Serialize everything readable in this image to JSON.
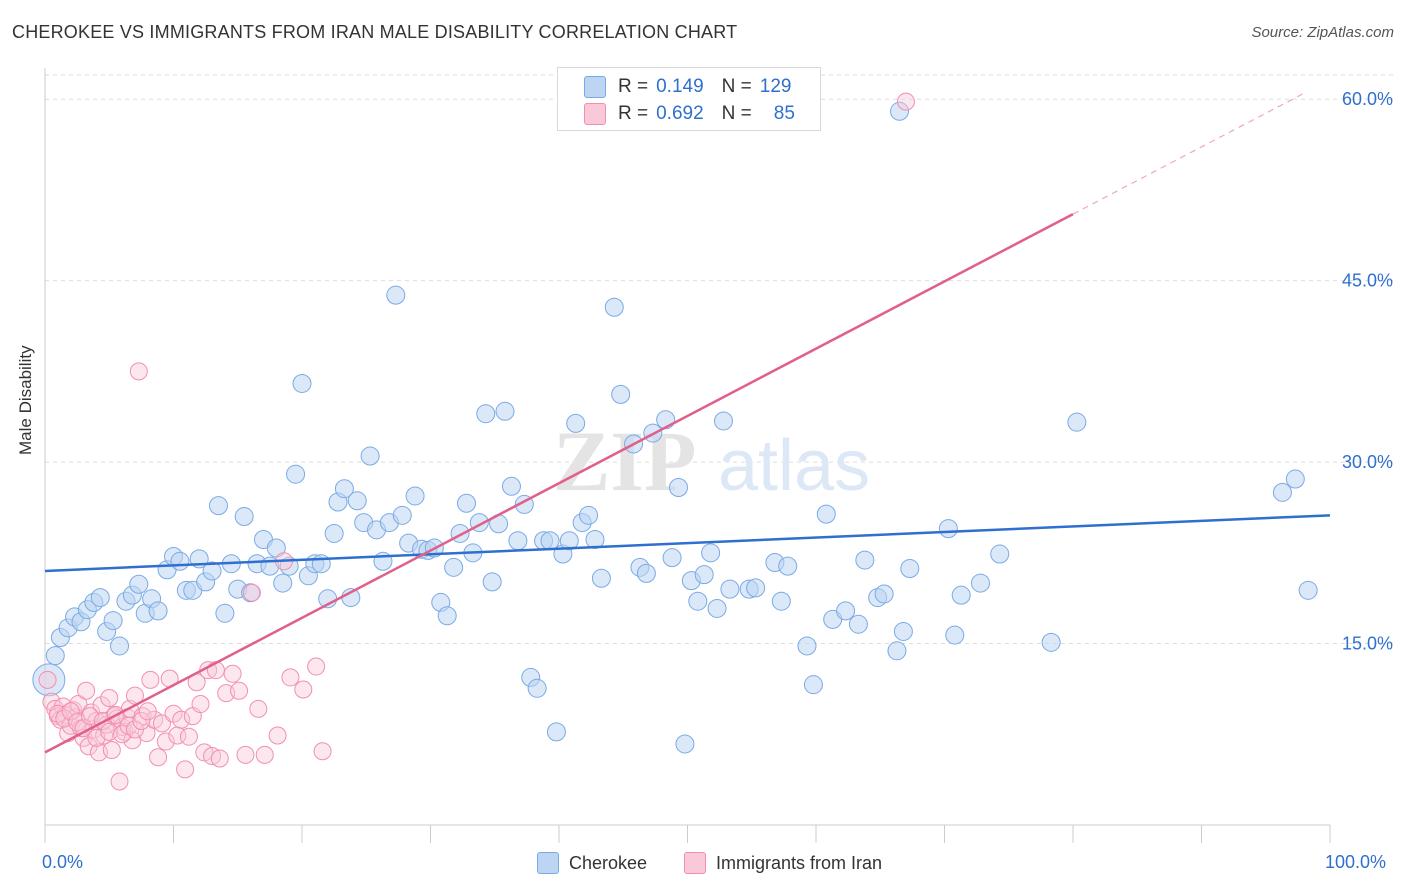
{
  "title": "CHEROKEE VS IMMIGRANTS FROM IRAN MALE DISABILITY CORRELATION CHART",
  "source": "Source: ZipAtlas.com",
  "watermark": {
    "zip": "ZIP",
    "atlas": "atlas"
  },
  "legend": {
    "rows": [
      {
        "r_label": "R =",
        "r_value": "0.149",
        "n_label": "N =",
        "n_value": "129",
        "color": "#a8c8f0"
      },
      {
        "r_label": "R =",
        "r_value": "0.692",
        "n_label": "N =",
        "n_value": "85",
        "color": "#f6b6cc"
      }
    ]
  },
  "bottom_legend": {
    "series1": "Cherokee",
    "series2": "Immigrants from Iran"
  },
  "colors": {
    "blue": "#7aaae6",
    "blue_line": "#2f6fcf",
    "pink": "#f28fb0",
    "pink_line": "#e0608a",
    "grid": "#dddddd",
    "tick_text": "#2f6fcf"
  },
  "chart_data": {
    "type": "scatter",
    "title": "CHEROKEE VS IMMIGRANTS FROM IRAN MALE DISABILITY CORRELATION CHART",
    "xlabel": "",
    "ylabel": "Male Disability",
    "xlim": [
      0,
      100
    ],
    "ylim": [
      0,
      62
    ],
    "x_tick_labels": [
      "0.0%",
      "100.0%"
    ],
    "y_ticks": [
      15,
      30,
      45,
      60
    ],
    "y_tick_labels": [
      "15.0%",
      "30.0%",
      "45.0%",
      "60.0%"
    ],
    "grid": "horizontal dashed",
    "legend_position": "top-center",
    "series": [
      {
        "name": "Cherokee",
        "color": "#7aaae6",
        "trend": {
          "x": [
            0,
            100
          ],
          "y": [
            21.0,
            25.6
          ]
        },
        "points": [
          [
            0.3,
            12.0
          ],
          [
            0.8,
            14.0
          ],
          [
            1.2,
            15.5
          ],
          [
            1.8,
            16.3
          ],
          [
            2.3,
            17.2
          ],
          [
            2.8,
            16.8
          ],
          [
            3.3,
            17.8
          ],
          [
            3.8,
            18.4
          ],
          [
            4.3,
            18.8
          ],
          [
            4.8,
            16.0
          ],
          [
            5.3,
            16.9
          ],
          [
            5.8,
            14.8
          ],
          [
            6.3,
            18.5
          ],
          [
            6.8,
            19.0
          ],
          [
            7.3,
            19.9
          ],
          [
            7.8,
            17.5
          ],
          [
            8.3,
            18.7
          ],
          [
            8.8,
            17.7
          ],
          [
            9.5,
            21.1
          ],
          [
            10.0,
            22.2
          ],
          [
            10.5,
            21.8
          ],
          [
            11.0,
            19.4
          ],
          [
            11.5,
            19.4
          ],
          [
            12.0,
            22.0
          ],
          [
            12.5,
            20.1
          ],
          [
            13.0,
            21.0
          ],
          [
            13.5,
            26.4
          ],
          [
            14.0,
            17.5
          ],
          [
            14.5,
            21.6
          ],
          [
            15.0,
            19.5
          ],
          [
            15.5,
            25.5
          ],
          [
            16.0,
            19.2
          ],
          [
            16.5,
            21.6
          ],
          [
            17.0,
            23.6
          ],
          [
            17.5,
            21.4
          ],
          [
            18.0,
            22.9
          ],
          [
            18.5,
            20.0
          ],
          [
            19.0,
            21.4
          ],
          [
            19.5,
            29.0
          ],
          [
            20.0,
            36.5
          ],
          [
            20.5,
            20.6
          ],
          [
            21.0,
            21.6
          ],
          [
            21.5,
            21.6
          ],
          [
            22.0,
            18.7
          ],
          [
            22.5,
            24.1
          ],
          [
            22.8,
            26.7
          ],
          [
            23.3,
            27.8
          ],
          [
            23.8,
            18.8
          ],
          [
            24.3,
            26.8
          ],
          [
            24.8,
            25.0
          ],
          [
            25.3,
            30.5
          ],
          [
            25.8,
            24.4
          ],
          [
            26.3,
            21.8
          ],
          [
            26.8,
            25.0
          ],
          [
            27.3,
            43.8
          ],
          [
            27.8,
            25.6
          ],
          [
            28.3,
            23.3
          ],
          [
            28.8,
            27.2
          ],
          [
            29.3,
            22.8
          ],
          [
            29.8,
            22.7
          ],
          [
            30.3,
            22.9
          ],
          [
            30.8,
            18.4
          ],
          [
            31.3,
            17.3
          ],
          [
            31.8,
            21.3
          ],
          [
            32.3,
            24.1
          ],
          [
            32.8,
            26.6
          ],
          [
            33.3,
            22.5
          ],
          [
            33.8,
            25.0
          ],
          [
            34.3,
            34.0
          ],
          [
            34.8,
            20.1
          ],
          [
            35.3,
            24.9
          ],
          [
            35.8,
            34.2
          ],
          [
            36.3,
            28.0
          ],
          [
            36.8,
            23.5
          ],
          [
            37.3,
            26.5
          ],
          [
            37.8,
            12.2
          ],
          [
            38.3,
            11.3
          ],
          [
            38.8,
            23.5
          ],
          [
            39.3,
            23.5
          ],
          [
            39.8,
            7.7
          ],
          [
            40.3,
            22.4
          ],
          [
            40.8,
            23.5
          ],
          [
            41.3,
            33.2
          ],
          [
            41.8,
            25.0
          ],
          [
            42.3,
            25.6
          ],
          [
            42.8,
            23.6
          ],
          [
            43.3,
            20.4
          ],
          [
            44.3,
            42.8
          ],
          [
            44.8,
            35.6
          ],
          [
            45.8,
            31.5
          ],
          [
            46.3,
            21.3
          ],
          [
            46.8,
            20.8
          ],
          [
            47.3,
            32.4
          ],
          [
            48.3,
            33.5
          ],
          [
            48.8,
            22.1
          ],
          [
            49.3,
            27.9
          ],
          [
            49.8,
            6.7
          ],
          [
            50.3,
            20.2
          ],
          [
            50.8,
            18.5
          ],
          [
            51.3,
            20.7
          ],
          [
            51.8,
            22.5
          ],
          [
            52.3,
            17.9
          ],
          [
            52.8,
            33.4
          ],
          [
            53.3,
            19.5
          ],
          [
            54.8,
            19.5
          ],
          [
            55.3,
            19.6
          ],
          [
            56.8,
            21.7
          ],
          [
            57.3,
            18.5
          ],
          [
            57.8,
            21.4
          ],
          [
            59.3,
            14.8
          ],
          [
            59.8,
            11.6
          ],
          [
            60.8,
            25.7
          ],
          [
            61.3,
            17.0
          ],
          [
            62.3,
            17.7
          ],
          [
            63.3,
            16.6
          ],
          [
            63.8,
            21.9
          ],
          [
            64.8,
            18.8
          ],
          [
            65.3,
            19.1
          ],
          [
            66.3,
            14.4
          ],
          [
            66.8,
            16.0
          ],
          [
            67.3,
            21.2
          ],
          [
            70.3,
            24.5
          ],
          [
            70.8,
            15.7
          ],
          [
            71.3,
            19.0
          ],
          [
            72.8,
            20.0
          ],
          [
            74.3,
            22.4
          ],
          [
            78.3,
            15.1
          ],
          [
            80.3,
            33.3
          ],
          [
            96.3,
            27.5
          ],
          [
            97.3,
            28.6
          ],
          [
            98.3,
            19.4
          ],
          [
            66.5,
            59.0
          ]
        ]
      },
      {
        "name": "Immigrants from Iran",
        "color": "#f28fb0",
        "trend": {
          "x": [
            0,
            80
          ],
          "y": [
            6.0,
            50.5
          ]
        },
        "trend_dashed": {
          "x": [
            80,
            98
          ],
          "y": [
            50.5,
            60.5
          ]
        },
        "points": [
          [
            0.2,
            12.0
          ],
          [
            0.5,
            10.2
          ],
          [
            0.8,
            9.6
          ],
          [
            1.0,
            9.0
          ],
          [
            1.2,
            8.7
          ],
          [
            1.4,
            9.8
          ],
          [
            1.6,
            9.1
          ],
          [
            1.8,
            7.6
          ],
          [
            2.0,
            8.2
          ],
          [
            2.2,
            9.5
          ],
          [
            2.4,
            8.9
          ],
          [
            2.6,
            10.0
          ],
          [
            2.8,
            8.0
          ],
          [
            3.0,
            7.2
          ],
          [
            3.2,
            11.1
          ],
          [
            3.4,
            6.5
          ],
          [
            3.6,
            9.3
          ],
          [
            3.8,
            7.9
          ],
          [
            4.0,
            8.6
          ],
          [
            4.2,
            6.0
          ],
          [
            4.4,
            9.9
          ],
          [
            4.6,
            7.4
          ],
          [
            4.8,
            8.3
          ],
          [
            5.0,
            10.5
          ],
          [
            5.2,
            6.2
          ],
          [
            5.4,
            9.0
          ],
          [
            5.6,
            8.8
          ],
          [
            5.8,
            3.6
          ],
          [
            6.0,
            8.1
          ],
          [
            6.2,
            7.7
          ],
          [
            6.4,
            8.9
          ],
          [
            6.6,
            9.6
          ],
          [
            6.8,
            7.0
          ],
          [
            7.0,
            10.7
          ],
          [
            7.3,
            37.5
          ],
          [
            7.6,
            9.0
          ],
          [
            7.9,
            7.6
          ],
          [
            8.2,
            12.0
          ],
          [
            8.5,
            8.7
          ],
          [
            8.8,
            5.6
          ],
          [
            9.1,
            8.4
          ],
          [
            9.4,
            6.9
          ],
          [
            9.7,
            12.1
          ],
          [
            10.0,
            9.2
          ],
          [
            10.3,
            7.4
          ],
          [
            10.6,
            8.7
          ],
          [
            10.9,
            4.6
          ],
          [
            11.2,
            7.3
          ],
          [
            11.5,
            9.0
          ],
          [
            11.8,
            11.8
          ],
          [
            12.1,
            10.0
          ],
          [
            12.4,
            6.0
          ],
          [
            12.7,
            12.8
          ],
          [
            13.0,
            5.7
          ],
          [
            13.3,
            12.8
          ],
          [
            13.6,
            5.5
          ],
          [
            14.1,
            10.9
          ],
          [
            14.6,
            12.5
          ],
          [
            15.1,
            11.1
          ],
          [
            15.6,
            5.8
          ],
          [
            16.1,
            19.2
          ],
          [
            16.6,
            9.6
          ],
          [
            17.1,
            5.8
          ],
          [
            18.1,
            7.4
          ],
          [
            18.6,
            21.8
          ],
          [
            19.1,
            12.2
          ],
          [
            20.1,
            11.2
          ],
          [
            21.1,
            13.1
          ],
          [
            21.6,
            6.1
          ],
          [
            67.0,
            59.8
          ],
          [
            1.0,
            9.2
          ],
          [
            1.5,
            8.8
          ],
          [
            2.0,
            9.4
          ],
          [
            2.5,
            8.5
          ],
          [
            3.0,
            8.0
          ],
          [
            3.5,
            9.0
          ],
          [
            4.0,
            7.2
          ],
          [
            4.5,
            8.6
          ],
          [
            5.0,
            7.7
          ],
          [
            5.5,
            9.1
          ],
          [
            6.0,
            7.5
          ],
          [
            6.5,
            8.2
          ],
          [
            7.0,
            7.9
          ],
          [
            7.5,
            8.6
          ],
          [
            8.0,
            9.4
          ]
        ]
      }
    ]
  }
}
